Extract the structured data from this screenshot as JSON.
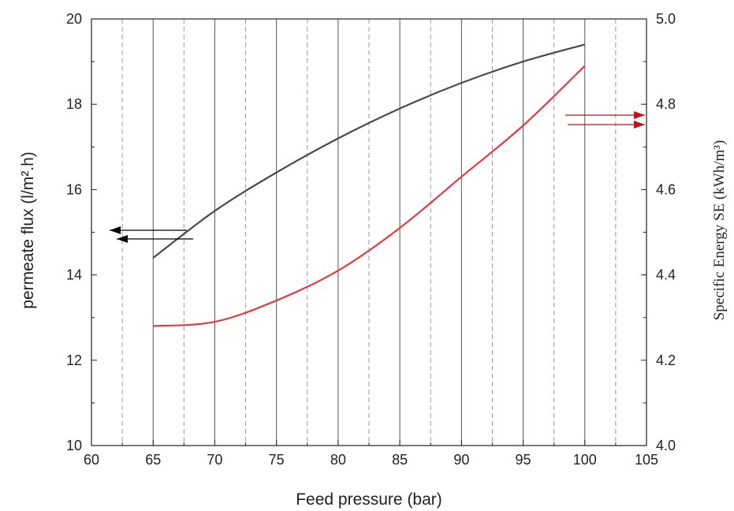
{
  "chart_data": {
    "type": "line",
    "xlabel": "Feed pressure (bar)",
    "ylabel_left": "permeate flux (l/m².h)",
    "ylabel_right": "Specific Energy SE (kWh/m³)",
    "xlim": [
      60,
      105
    ],
    "ylim_left": [
      10,
      20
    ],
    "ylim_right": [
      4.0,
      5.0
    ],
    "x_ticks": [
      60,
      65,
      70,
      75,
      80,
      85,
      90,
      95,
      100,
      105
    ],
    "y_left_ticks": [
      10,
      12,
      14,
      16,
      18,
      20
    ],
    "y_right_ticks": [
      "4.0",
      "4.2",
      "4.4",
      "4.6",
      "4.8",
      "5.0"
    ],
    "grid": "vertical solid lines at major x ticks, dashed at minor x ticks",
    "series": [
      {
        "axis": "left",
        "color": "#4a4a4a",
        "x": [
          65,
          70,
          75,
          80,
          85,
          90,
          95,
          100
        ],
        "y": [
          14.4,
          15.5,
          16.4,
          17.2,
          17.9,
          18.5,
          19.0,
          19.4
        ]
      },
      {
        "axis": "right",
        "color": "#e8383d",
        "x": [
          65,
          70,
          75,
          80,
          85,
          90,
          95,
          100
        ],
        "y": [
          4.28,
          4.29,
          4.34,
          4.41,
          4.51,
          4.63,
          4.75,
          4.89
        ]
      }
    ],
    "annotations": [
      {
        "type": "double-arrow",
        "direction": "left",
        "color": "#000000",
        "points_to": "left axis"
      },
      {
        "type": "double-arrow",
        "direction": "right",
        "color": "#c0141a",
        "points_to": "right axis"
      }
    ]
  }
}
